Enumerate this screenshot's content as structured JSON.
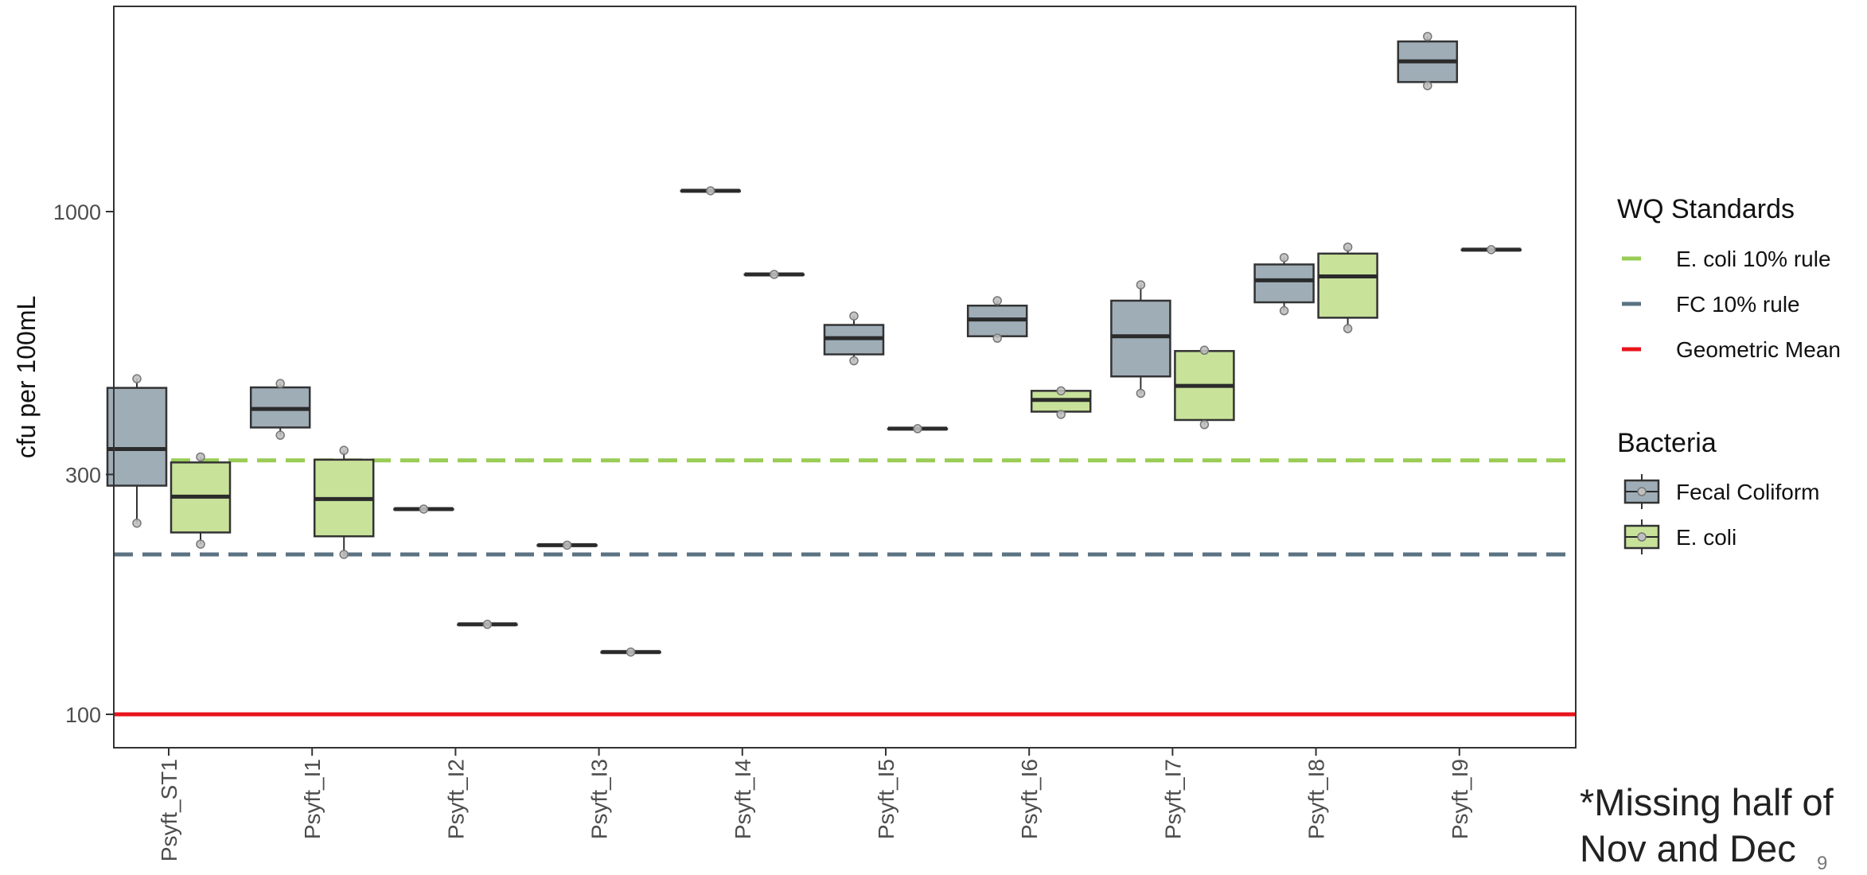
{
  "chart_data": {
    "type": "box",
    "title": "",
    "xlabel": "",
    "ylabel": "cfu per 100mL",
    "y_scale": "log10",
    "ylim": [
      90,
      2300
    ],
    "yticks": [
      {
        "value": 100,
        "label": "100"
      },
      {
        "value": 300,
        "label": "300"
      },
      {
        "value": 1000,
        "label": "1000"
      }
    ],
    "grid": false,
    "categories": [
      "Psyft_ST1",
      "Psyft_I1",
      "Psyft_I2",
      "Psyft_I3",
      "Psyft_I4",
      "Psyft_I5",
      "Psyft_I6",
      "Psyft_I7",
      "Psyft_I8",
      "Psyft_I9"
    ],
    "series": [
      {
        "name": "Fecal Coliform",
        "color": "#9fadb7",
        "boxes": [
          {
            "category": "Psyft_ST1",
            "points": [
              240,
              465
            ],
            "q1": 285,
            "median": 337,
            "q3": 446,
            "min": 240,
            "max": 465
          },
          {
            "category": "Psyft_I1",
            "points": [
              359,
              455
            ],
            "q1": 372,
            "median": 405,
            "q3": 447,
            "min": 359,
            "max": 455
          },
          {
            "category": "Psyft_I2",
            "points": [
              256
            ],
            "q1": 256,
            "median": 256,
            "q3": 256,
            "min": 256,
            "max": 256
          },
          {
            "category": "Psyft_I3",
            "points": [
              217
            ],
            "q1": 217,
            "median": 217,
            "q3": 217,
            "min": 217,
            "max": 217
          },
          {
            "category": "Psyft_I4",
            "points": [
              1100
            ],
            "q1": 1100,
            "median": 1100,
            "q3": 1100,
            "min": 1100,
            "max": 1100
          },
          {
            "category": "Psyft_I5",
            "points": [
              505,
              620
            ],
            "q1": 520,
            "median": 560,
            "q3": 595,
            "min": 505,
            "max": 620
          },
          {
            "category": "Psyft_I6",
            "points": [
              560,
              665
            ],
            "q1": 565,
            "median": 610,
            "q3": 650,
            "min": 560,
            "max": 665
          },
          {
            "category": "Psyft_I7",
            "points": [
              435,
              715
            ],
            "q1": 470,
            "median": 565,
            "q3": 665,
            "min": 435,
            "max": 715
          },
          {
            "category": "Psyft_I8",
            "points": [
              635,
              810
            ],
            "q1": 660,
            "median": 730,
            "q3": 785,
            "min": 635,
            "max": 810
          },
          {
            "category": "Psyft_I9",
            "points": [
              1780,
              2230
            ],
            "q1": 1810,
            "median": 1990,
            "q3": 2180,
            "min": 1780,
            "max": 2230
          }
        ]
      },
      {
        "name": "E. coli",
        "color": "#c8e29a",
        "boxes": [
          {
            "category": "Psyft_ST1",
            "points": [
              218,
              325
            ],
            "q1": 230,
            "median": 271,
            "q3": 317,
            "min": 218,
            "max": 325
          },
          {
            "category": "Psyft_I1",
            "points": [
              208,
              335
            ],
            "q1": 226,
            "median": 268,
            "q3": 321,
            "min": 208,
            "max": 335
          },
          {
            "category": "Psyft_I2",
            "points": [
              151
            ],
            "q1": 151,
            "median": 151,
            "q3": 151,
            "min": 151,
            "max": 151
          },
          {
            "category": "Psyft_I3",
            "points": [
              133
            ],
            "q1": 133,
            "median": 133,
            "q3": 133,
            "min": 133,
            "max": 133
          },
          {
            "category": "Psyft_I4",
            "points": [
              750
            ],
            "q1": 750,
            "median": 750,
            "q3": 750,
            "min": 750,
            "max": 750
          },
          {
            "category": "Psyft_I5",
            "points": [
              370
            ],
            "q1": 370,
            "median": 370,
            "q3": 370,
            "min": 370,
            "max": 370
          },
          {
            "category": "Psyft_I6",
            "points": [
              395,
              440
            ],
            "q1": 400,
            "median": 422,
            "q3": 440,
            "min": 395,
            "max": 440
          },
          {
            "category": "Psyft_I7",
            "points": [
              377,
              530
            ],
            "q1": 385,
            "median": 450,
            "q3": 528,
            "min": 377,
            "max": 530
          },
          {
            "category": "Psyft_I8",
            "points": [
              585,
              850
            ],
            "q1": 615,
            "median": 743,
            "q3": 825,
            "min": 585,
            "max": 850
          },
          {
            "category": "Psyft_I9",
            "points": [
              840
            ],
            "q1": 840,
            "median": 840,
            "q3": 840,
            "min": 840,
            "max": 840
          }
        ]
      }
    ],
    "reference_lines": [
      {
        "name": "E. coli 10% rule",
        "value": 320,
        "color": "#99cc55",
        "style": "dashed"
      },
      {
        "name": "FC 10% rule",
        "value": 208,
        "color": "#5b7282",
        "style": "dashed"
      },
      {
        "name": "Geometric Mean",
        "value": 100,
        "color": "#e8141c",
        "style": "solid"
      }
    ],
    "legends": [
      {
        "title": "WQ Standards",
        "entries": [
          "E. coli 10% rule",
          "FC 10% rule",
          "Geometric Mean"
        ],
        "placement": "right"
      },
      {
        "title": "Bacteria",
        "entries": [
          "Fecal Coliform",
          "E. coli"
        ],
        "placement": "right"
      }
    ]
  },
  "annotation": {
    "line1": "*Missing half of",
    "line2": "Nov and Dec"
  },
  "page_number": "9"
}
